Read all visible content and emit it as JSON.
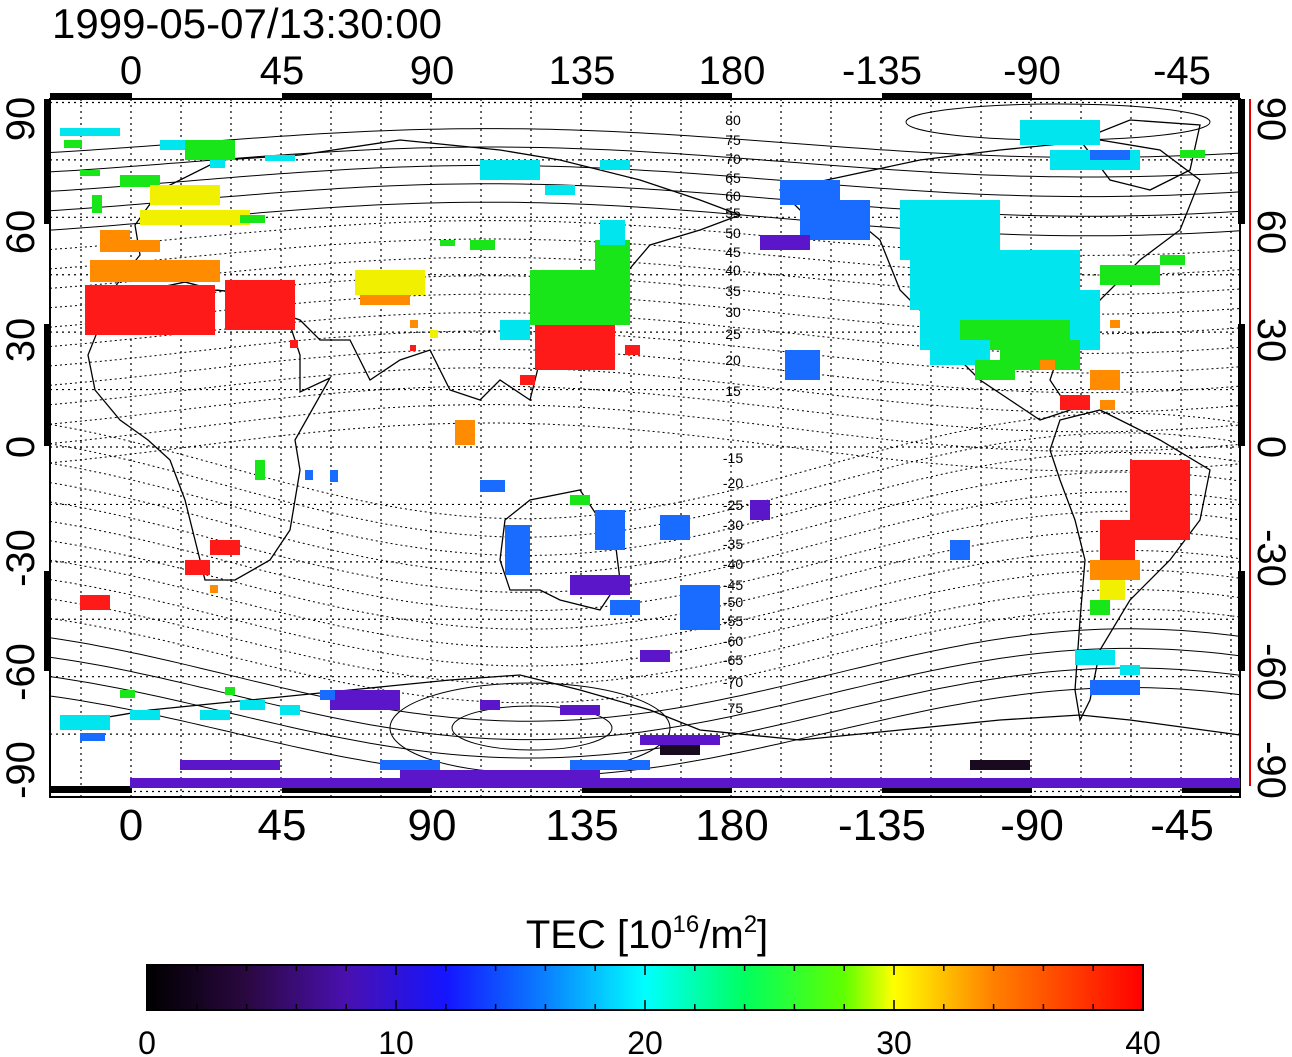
{
  "timestamp": "1999-05-07/13:30:00",
  "axes": {
    "x_ticks": [
      "0",
      "45",
      "90",
      "135",
      "180",
      "-135",
      "-90",
      "-45"
    ],
    "y_ticks": [
      "90",
      "60",
      "30",
      "0",
      "-30",
      "-60",
      "-90"
    ]
  },
  "contour_labels_north": [
    "80",
    "75",
    "70",
    "65",
    "60",
    "55",
    "50",
    "45",
    "40",
    "35",
    "30",
    "25",
    "20",
    "15"
  ],
  "contour_labels_south": [
    "-15",
    "-20",
    "-25",
    "-30",
    "-35",
    "-40",
    "-45",
    "-50",
    "-55",
    "-60",
    "-65",
    "-70",
    "-75"
  ],
  "colorbar": {
    "title_prefix": "TEC  [10",
    "title_sup1": "16",
    "title_mid": "/m",
    "title_sup2": "2",
    "title_suffix": "]",
    "min": 0,
    "max": 40,
    "ticks": [
      "0",
      "10",
      "20",
      "30",
      "40"
    ]
  },
  "colors": {
    "red": "#ff1a1a",
    "orange": "#ff8c00",
    "yellow": "#f0f000",
    "green": "#19e619",
    "cyan": "#00e5ee",
    "blue": "#1a6bff",
    "violet": "#5a16c8",
    "dark": "#1a0a20"
  }
}
